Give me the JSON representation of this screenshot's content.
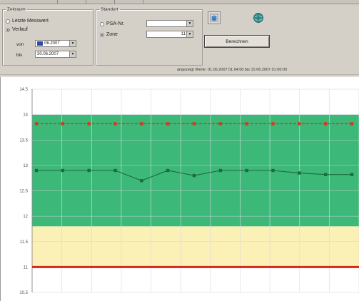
{
  "zeitraum": {
    "title": "Zeitraum",
    "latest_label": "Letzte Messwert",
    "verlauf_label": "Verlauf",
    "von_label": "von",
    "bis_label": "bis",
    "von_value": "06.2007",
    "bis_value": "30.06.2007"
  },
  "standort": {
    "title": "Standort",
    "psa_label": "PSA-Nr.",
    "psa_value": "",
    "zone_label": "Zone",
    "zone_value": "11"
  },
  "toolbar": {
    "berechnen_label": "Berechnen",
    "icon1": "database-icon",
    "icon2": "globe-icon"
  },
  "info_text": "angezeigt Werte: 01.06.2007 01:04:00 bis 15.06.2007 01:00:00",
  "colors": {
    "safe_band": "#3cb878",
    "warning_band": "#fbf0b6",
    "limit_red": "#d62818",
    "upper_line": "#d23a1c",
    "series_line": "#1e6a3c"
  },
  "chart_data": {
    "type": "line",
    "ylim": [
      10.5,
      14.5
    ],
    "yticks": [
      "14.5",
      "14",
      "13.5",
      "13",
      "12.5",
      "12",
      "11.5",
      "11",
      "10.5"
    ],
    "bands": [
      {
        "name": "",
        "from": 11.8,
        "to": 14.0,
        "color": "#3cb878"
      },
      {
        "name": "",
        "from": 11.0,
        "to": 11.8,
        "color": "#fbf0b6"
      }
    ],
    "reference_lines": [
      {
        "value": 11.0,
        "color": "#d62818"
      }
    ],
    "series": [
      {
        "style": "dashed",
        "color": "#d23a1c",
        "values": [
          13.82,
          13.82,
          13.82,
          13.82,
          13.82,
          13.82,
          13.82,
          13.82,
          13.82,
          13.82,
          13.82,
          13.82,
          13.82
        ]
      },
      {
        "style": "solid",
        "color": "#1e6a3c",
        "values": [
          12.9,
          12.9,
          12.9,
          12.9,
          12.7,
          12.9,
          12.8,
          12.9,
          12.9,
          12.9,
          12.85,
          12.82,
          12.82
        ]
      }
    ]
  }
}
